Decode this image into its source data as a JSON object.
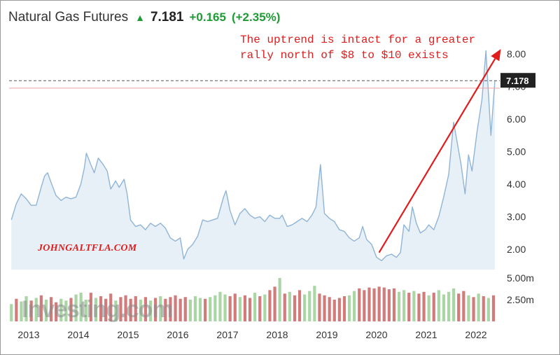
{
  "header": {
    "title": "Natural Gas Futures",
    "price": "7.181",
    "change": "+0.165",
    "change_pct": "(+2.35%)",
    "arrow_icon": "up-triangle-arrow"
  },
  "annotation": "The uptrend is intact for a greater\nrally north of $8 to $10 exists",
  "watermark": "JOHNGALTFLA.COM",
  "logo": "Investing.com",
  "colors": {
    "line": "#8fb4d6",
    "area": "#e8f0f7",
    "up_volume": "#a9d6a4",
    "down_volume": "#d27b7b",
    "annotation": "#e01c1c",
    "positive": "#1f9b36",
    "last_value_box": "#222222",
    "reference_line": "#f0a0a0"
  },
  "chart_data": {
    "type": "line",
    "title": "Natural Gas Futures",
    "x_start": "2012-09",
    "x_end": "2022-06",
    "x_tick_labels": [
      "2013",
      "2014",
      "2015",
      "2016",
      "2017",
      "2018",
      "2019",
      "2020",
      "2021",
      "2022"
    ],
    "y_tick_labels": [
      "2.00",
      "3.00",
      "4.00",
      "5.00",
      "6.00",
      "7.00",
      "8.00"
    ],
    "ylim": [
      1.35,
      8.4
    ],
    "grid": false,
    "last_value_label": "7.178",
    "last_value": 7.178,
    "reference_level": 6.95,
    "series": [
      {
        "values": [
          [
            2012.65,
            2.9
          ],
          [
            2012.75,
            3.4
          ],
          [
            2012.85,
            3.7
          ],
          [
            2012.95,
            3.55
          ],
          [
            2013.05,
            3.35
          ],
          [
            2013.15,
            3.35
          ],
          [
            2013.25,
            3.9
          ],
          [
            2013.32,
            4.25
          ],
          [
            2013.38,
            4.35
          ],
          [
            2013.45,
            4.05
          ],
          [
            2013.55,
            3.65
          ],
          [
            2013.65,
            3.5
          ],
          [
            2013.75,
            3.6
          ],
          [
            2013.85,
            3.55
          ],
          [
            2013.95,
            3.6
          ],
          [
            2014.05,
            4.0
          ],
          [
            2014.12,
            4.5
          ],
          [
            2014.16,
            4.95
          ],
          [
            2014.25,
            4.6
          ],
          [
            2014.32,
            4.35
          ],
          [
            2014.4,
            4.8
          ],
          [
            2014.5,
            4.6
          ],
          [
            2014.58,
            4.4
          ],
          [
            2014.65,
            3.85
          ],
          [
            2014.75,
            4.1
          ],
          [
            2014.82,
            3.9
          ],
          [
            2014.92,
            4.15
          ],
          [
            2014.98,
            3.7
          ],
          [
            2015.05,
            2.9
          ],
          [
            2015.15,
            2.7
          ],
          [
            2015.25,
            2.75
          ],
          [
            2015.35,
            2.6
          ],
          [
            2015.45,
            2.8
          ],
          [
            2015.55,
            2.7
          ],
          [
            2015.65,
            2.8
          ],
          [
            2015.75,
            2.65
          ],
          [
            2015.85,
            2.35
          ],
          [
            2015.95,
            2.25
          ],
          [
            2016.05,
            2.35
          ],
          [
            2016.12,
            1.7
          ],
          [
            2016.2,
            2.0
          ],
          [
            2016.3,
            2.15
          ],
          [
            2016.4,
            2.4
          ],
          [
            2016.5,
            2.9
          ],
          [
            2016.6,
            2.85
          ],
          [
            2016.7,
            2.9
          ],
          [
            2016.8,
            2.95
          ],
          [
            2016.92,
            3.6
          ],
          [
            2016.97,
            3.8
          ],
          [
            2017.05,
            3.2
          ],
          [
            2017.15,
            2.75
          ],
          [
            2017.25,
            3.1
          ],
          [
            2017.35,
            3.25
          ],
          [
            2017.45,
            3.05
          ],
          [
            2017.55,
            2.95
          ],
          [
            2017.65,
            3.0
          ],
          [
            2017.75,
            2.85
          ],
          [
            2017.85,
            3.05
          ],
          [
            2017.95,
            2.95
          ],
          [
            2018.05,
            2.95
          ],
          [
            2018.1,
            3.05
          ],
          [
            2018.2,
            2.7
          ],
          [
            2018.3,
            2.75
          ],
          [
            2018.4,
            2.85
          ],
          [
            2018.5,
            2.95
          ],
          [
            2018.6,
            2.85
          ],
          [
            2018.7,
            3.05
          ],
          [
            2018.78,
            3.3
          ],
          [
            2018.87,
            4.6
          ],
          [
            2018.95,
            3.1
          ],
          [
            2019.05,
            2.95
          ],
          [
            2019.15,
            2.85
          ],
          [
            2019.25,
            2.6
          ],
          [
            2019.35,
            2.55
          ],
          [
            2019.45,
            2.35
          ],
          [
            2019.55,
            2.25
          ],
          [
            2019.65,
            2.35
          ],
          [
            2019.72,
            2.7
          ],
          [
            2019.8,
            2.3
          ],
          [
            2019.9,
            2.15
          ],
          [
            2020.0,
            1.75
          ],
          [
            2020.1,
            1.65
          ],
          [
            2020.2,
            1.8
          ],
          [
            2020.3,
            1.85
          ],
          [
            2020.4,
            1.75
          ],
          [
            2020.48,
            1.9
          ],
          [
            2020.55,
            2.75
          ],
          [
            2020.65,
            2.55
          ],
          [
            2020.72,
            3.3
          ],
          [
            2020.8,
            2.8
          ],
          [
            2020.88,
            2.5
          ],
          [
            2020.98,
            2.6
          ],
          [
            2021.05,
            2.75
          ],
          [
            2021.15,
            2.6
          ],
          [
            2021.25,
            3.0
          ],
          [
            2021.35,
            3.6
          ],
          [
            2021.45,
            4.3
          ],
          [
            2021.55,
            5.9
          ],
          [
            2021.62,
            5.3
          ],
          [
            2021.7,
            4.6
          ],
          [
            2021.78,
            3.7
          ],
          [
            2021.85,
            4.9
          ],
          [
            2021.92,
            4.4
          ],
          [
            2022.02,
            5.6
          ],
          [
            2022.12,
            6.6
          ],
          [
            2022.2,
            8.1
          ],
          [
            2022.3,
            5.5
          ],
          [
            2022.38,
            7.18
          ]
        ]
      }
    ],
    "volume": {
      "y_tick_labels": [
        "5.00m",
        "2.50m"
      ],
      "ylim": [
        0,
        5.8
      ],
      "unit": "m",
      "bars": [
        {
          "x": 2012.65,
          "v": 2.0,
          "up": true
        },
        {
          "x": 2012.75,
          "v": 2.6,
          "up": false
        },
        {
          "x": 2012.85,
          "v": 2.3,
          "up": true
        },
        {
          "x": 2012.95,
          "v": 2.9,
          "up": true
        },
        {
          "x": 2013.05,
          "v": 2.4,
          "up": false
        },
        {
          "x": 2013.15,
          "v": 2.7,
          "up": true
        },
        {
          "x": 2013.25,
          "v": 3.0,
          "up": false
        },
        {
          "x": 2013.35,
          "v": 2.5,
          "up": true
        },
        {
          "x": 2013.45,
          "v": 2.8,
          "up": false
        },
        {
          "x": 2013.55,
          "v": 2.2,
          "up": false
        },
        {
          "x": 2013.65,
          "v": 2.6,
          "up": true
        },
        {
          "x": 2013.75,
          "v": 2.4,
          "up": true
        },
        {
          "x": 2013.85,
          "v": 2.7,
          "up": false
        },
        {
          "x": 2013.95,
          "v": 3.1,
          "up": true
        },
        {
          "x": 2014.05,
          "v": 3.3,
          "up": true
        },
        {
          "x": 2014.15,
          "v": 2.5,
          "up": true
        },
        {
          "x": 2014.25,
          "v": 3.3,
          "up": false
        },
        {
          "x": 2014.35,
          "v": 2.7,
          "up": true
        },
        {
          "x": 2014.45,
          "v": 2.9,
          "up": false
        },
        {
          "x": 2014.55,
          "v": 2.6,
          "up": false
        },
        {
          "x": 2014.65,
          "v": 3.2,
          "up": false
        },
        {
          "x": 2014.75,
          "v": 2.4,
          "up": true
        },
        {
          "x": 2014.85,
          "v": 2.8,
          "up": false
        },
        {
          "x": 2014.95,
          "v": 3.0,
          "up": false
        },
        {
          "x": 2015.05,
          "v": 2.6,
          "up": false
        },
        {
          "x": 2015.15,
          "v": 2.9,
          "up": false
        },
        {
          "x": 2015.25,
          "v": 2.5,
          "up": true
        },
        {
          "x": 2015.35,
          "v": 2.8,
          "up": false
        },
        {
          "x": 2015.45,
          "v": 2.4,
          "up": true
        },
        {
          "x": 2015.55,
          "v": 2.7,
          "up": false
        },
        {
          "x": 2015.65,
          "v": 2.9,
          "up": true
        },
        {
          "x": 2015.75,
          "v": 2.6,
          "up": false
        },
        {
          "x": 2015.85,
          "v": 2.8,
          "up": false
        },
        {
          "x": 2015.95,
          "v": 3.0,
          "up": false
        },
        {
          "x": 2016.05,
          "v": 2.6,
          "up": false
        },
        {
          "x": 2016.15,
          "v": 2.8,
          "up": false
        },
        {
          "x": 2016.25,
          "v": 2.5,
          "up": true
        },
        {
          "x": 2016.35,
          "v": 2.9,
          "up": true
        },
        {
          "x": 2016.45,
          "v": 2.7,
          "up": true
        },
        {
          "x": 2016.55,
          "v": 2.6,
          "up": false
        },
        {
          "x": 2016.65,
          "v": 2.8,
          "up": true
        },
        {
          "x": 2016.75,
          "v": 3.0,
          "up": true
        },
        {
          "x": 2016.85,
          "v": 3.4,
          "up": true
        },
        {
          "x": 2016.95,
          "v": 3.1,
          "up": true
        },
        {
          "x": 2017.05,
          "v": 2.9,
          "up": false
        },
        {
          "x": 2017.15,
          "v": 3.2,
          "up": false
        },
        {
          "x": 2017.25,
          "v": 2.8,
          "up": true
        },
        {
          "x": 2017.35,
          "v": 3.0,
          "up": false
        },
        {
          "x": 2017.45,
          "v": 2.7,
          "up": false
        },
        {
          "x": 2017.55,
          "v": 3.3,
          "up": true
        },
        {
          "x": 2017.65,
          "v": 2.9,
          "up": false
        },
        {
          "x": 2017.75,
          "v": 3.1,
          "up": true
        },
        {
          "x": 2017.85,
          "v": 3.6,
          "up": false
        },
        {
          "x": 2017.95,
          "v": 4.0,
          "up": false
        },
        {
          "x": 2018.05,
          "v": 5.0,
          "up": true
        },
        {
          "x": 2018.15,
          "v": 3.2,
          "up": false
        },
        {
          "x": 2018.25,
          "v": 3.4,
          "up": true
        },
        {
          "x": 2018.35,
          "v": 3.0,
          "up": false
        },
        {
          "x": 2018.45,
          "v": 3.6,
          "up": false
        },
        {
          "x": 2018.55,
          "v": 3.1,
          "up": true
        },
        {
          "x": 2018.65,
          "v": 3.5,
          "up": true
        },
        {
          "x": 2018.75,
          "v": 4.1,
          "up": true
        },
        {
          "x": 2018.85,
          "v": 3.2,
          "up": false
        },
        {
          "x": 2018.95,
          "v": 3.0,
          "up": false
        },
        {
          "x": 2019.05,
          "v": 2.8,
          "up": false
        },
        {
          "x": 2019.15,
          "v": 2.5,
          "up": false
        },
        {
          "x": 2019.25,
          "v": 2.7,
          "up": false
        },
        {
          "x": 2019.35,
          "v": 2.9,
          "up": false
        },
        {
          "x": 2019.45,
          "v": 3.0,
          "up": true
        },
        {
          "x": 2019.55,
          "v": 3.5,
          "up": true
        },
        {
          "x": 2019.65,
          "v": 3.8,
          "up": false
        },
        {
          "x": 2019.75,
          "v": 3.6,
          "up": false
        },
        {
          "x": 2019.85,
          "v": 3.9,
          "up": false
        },
        {
          "x": 2019.95,
          "v": 3.8,
          "up": false
        },
        {
          "x": 2020.05,
          "v": 4.0,
          "up": false
        },
        {
          "x": 2020.15,
          "v": 3.9,
          "up": false
        },
        {
          "x": 2020.25,
          "v": 3.7,
          "up": false
        },
        {
          "x": 2020.35,
          "v": 3.8,
          "up": false
        },
        {
          "x": 2020.45,
          "v": 3.4,
          "up": true
        },
        {
          "x": 2020.55,
          "v": 3.6,
          "up": true
        },
        {
          "x": 2020.65,
          "v": 3.3,
          "up": false
        },
        {
          "x": 2020.75,
          "v": 3.5,
          "up": true
        },
        {
          "x": 2020.85,
          "v": 3.2,
          "up": false
        },
        {
          "x": 2020.95,
          "v": 3.4,
          "up": false
        },
        {
          "x": 2021.05,
          "v": 3.0,
          "up": true
        },
        {
          "x": 2021.15,
          "v": 3.3,
          "up": false
        },
        {
          "x": 2021.25,
          "v": 3.6,
          "up": true
        },
        {
          "x": 2021.35,
          "v": 3.1,
          "up": true
        },
        {
          "x": 2021.45,
          "v": 3.4,
          "up": true
        },
        {
          "x": 2021.55,
          "v": 3.8,
          "up": true
        },
        {
          "x": 2021.65,
          "v": 3.2,
          "up": false
        },
        {
          "x": 2021.75,
          "v": 3.5,
          "up": false
        },
        {
          "x": 2021.85,
          "v": 3.0,
          "up": true
        },
        {
          "x": 2021.95,
          "v": 2.8,
          "up": false
        },
        {
          "x": 2022.05,
          "v": 3.2,
          "up": true
        },
        {
          "x": 2022.15,
          "v": 2.9,
          "up": false
        },
        {
          "x": 2022.25,
          "v": 2.7,
          "up": true
        },
        {
          "x": 2022.35,
          "v": 3.0,
          "up": false
        }
      ]
    },
    "trend_arrow": {
      "from": [
        2020.05,
        1.9
      ],
      "to": [
        2022.5,
        8.15
      ]
    },
    "legend": "none"
  }
}
